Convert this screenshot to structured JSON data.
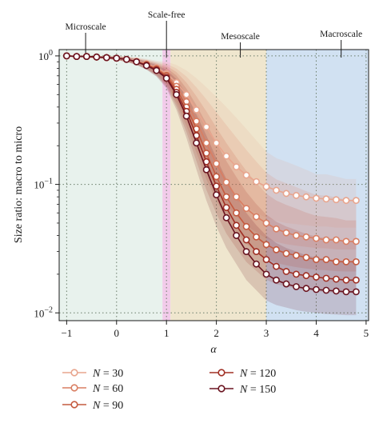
{
  "chart_data": {
    "type": "line",
    "ylabel": "Size ratio: macro to micro",
    "xlabel": "α",
    "yscale": "log",
    "xlim": [
      -1.15,
      5.05
    ],
    "ylim": [
      0.0087,
      1.12
    ],
    "grid": true,
    "legend_placement": "bottom",
    "x_ticks": [
      -1,
      0,
      1,
      2,
      3,
      4,
      5
    ],
    "x_tick_labels": [
      "−1",
      "0",
      "1",
      "2",
      "3",
      "4",
      "5"
    ],
    "y_ticks": [
      {
        "value": 1,
        "base": "10",
        "exp": "0"
      },
      {
        "value": 0.1,
        "base": "10",
        "exp": "−1"
      },
      {
        "value": 0.01,
        "base": "10",
        "exp": "−2"
      }
    ],
    "regions": [
      {
        "name": "Microscale",
        "x_from": -1.15,
        "x_to": 0.92,
        "color": "#e4f0ea",
        "label_x": -0.62
      },
      {
        "name": "Scale-free",
        "x_from": 0.92,
        "x_to": 1.08,
        "color": "#f0c2e6",
        "label_x": 1.0
      },
      {
        "name": "Mesoscale",
        "x_from": 1.08,
        "x_to": 3.0,
        "color": "#ece2c6",
        "label_x": 2.48
      },
      {
        "name": "Macroscale",
        "x_from": 3.0,
        "x_to": 5.05,
        "color": "#c9dcf0",
        "label_x": 4.5
      }
    ],
    "x": [
      -1.0,
      -0.8,
      -0.6,
      -0.4,
      -0.2,
      0.0,
      0.2,
      0.4,
      0.6,
      0.8,
      1.0,
      1.2,
      1.4,
      1.6,
      1.8,
      2.0,
      2.2,
      2.4,
      2.6,
      2.8,
      3.0,
      3.2,
      3.4,
      3.6,
      3.8,
      4.0,
      4.2,
      4.4,
      4.6,
      4.8
    ],
    "series": [
      {
        "name": "N = 30",
        "color": "#e8a58e",
        "values": [
          1.0,
          0.99,
          0.99,
          0.98,
          0.97,
          0.96,
          0.94,
          0.91,
          0.87,
          0.81,
          0.73,
          0.62,
          0.5,
          0.38,
          0.28,
          0.21,
          0.166,
          0.137,
          0.118,
          0.105,
          0.096,
          0.09,
          0.085,
          0.082,
          0.08,
          0.078,
          0.077,
          0.076,
          0.075,
          0.075
        ],
        "band_high": [
          1.0,
          1.0,
          1.0,
          1.0,
          1.0,
          1.0,
          0.99,
          0.97,
          0.95,
          0.92,
          0.9,
          0.85,
          0.77,
          0.67,
          0.57,
          0.48,
          0.4,
          0.33,
          0.27,
          0.22,
          0.18,
          0.16,
          0.15,
          0.14,
          0.13,
          0.12,
          0.12,
          0.115,
          0.11,
          0.11
        ],
        "band_low": [
          1.0,
          0.98,
          0.97,
          0.96,
          0.95,
          0.93,
          0.9,
          0.86,
          0.8,
          0.72,
          0.62,
          0.48,
          0.35,
          0.24,
          0.16,
          0.12,
          0.09,
          0.075,
          0.066,
          0.06,
          0.055,
          0.052,
          0.05,
          0.049,
          0.048,
          0.047,
          0.047,
          0.046,
          0.046,
          0.046
        ]
      },
      {
        "name": "N = 60",
        "color": "#d97e62",
        "values": [
          1.0,
          0.99,
          0.99,
          0.98,
          0.97,
          0.96,
          0.94,
          0.9,
          0.86,
          0.8,
          0.71,
          0.58,
          0.44,
          0.31,
          0.21,
          0.145,
          0.104,
          0.08,
          0.065,
          0.056,
          0.05,
          0.045,
          0.042,
          0.04,
          0.039,
          0.038,
          0.037,
          0.037,
          0.036,
          0.036
        ]
      },
      {
        "name": "N = 90",
        "color": "#c45a3f",
        "values": [
          1.0,
          0.99,
          0.99,
          0.98,
          0.97,
          0.96,
          0.94,
          0.9,
          0.85,
          0.79,
          0.7,
          0.55,
          0.4,
          0.27,
          0.175,
          0.115,
          0.08,
          0.06,
          0.047,
          0.039,
          0.034,
          0.031,
          0.029,
          0.028,
          0.027,
          0.026,
          0.026,
          0.025,
          0.025,
          0.025
        ]
      },
      {
        "name": "N = 120",
        "color": "#a03025",
        "values": [
          1.0,
          0.99,
          0.99,
          0.98,
          0.97,
          0.96,
          0.94,
          0.9,
          0.85,
          0.78,
          0.68,
          0.52,
          0.37,
          0.24,
          0.15,
          0.097,
          0.066,
          0.048,
          0.037,
          0.03,
          0.026,
          0.023,
          0.021,
          0.02,
          0.0195,
          0.019,
          0.0186,
          0.0183,
          0.018,
          0.018
        ]
      },
      {
        "name": "N = 150",
        "color": "#6a1420",
        "values": [
          1.0,
          0.99,
          0.99,
          0.98,
          0.97,
          0.96,
          0.94,
          0.9,
          0.84,
          0.77,
          0.67,
          0.5,
          0.34,
          0.21,
          0.13,
          0.083,
          0.055,
          0.04,
          0.03,
          0.024,
          0.02,
          0.018,
          0.0168,
          0.016,
          0.0155,
          0.0152,
          0.015,
          0.0148,
          0.0146,
          0.0146
        ],
        "band_high": [
          1.0,
          1.0,
          1.0,
          0.99,
          0.99,
          0.98,
          0.97,
          0.94,
          0.9,
          0.85,
          0.78,
          0.66,
          0.5,
          0.35,
          0.24,
          0.16,
          0.11,
          0.08,
          0.06,
          0.048,
          0.04,
          0.035,
          0.032,
          0.03,
          0.028,
          0.027,
          0.026,
          0.026,
          0.025,
          0.025
        ],
        "band_low": [
          0.99,
          0.98,
          0.97,
          0.96,
          0.95,
          0.93,
          0.9,
          0.85,
          0.78,
          0.69,
          0.56,
          0.38,
          0.23,
          0.13,
          0.075,
          0.047,
          0.032,
          0.024,
          0.018,
          0.015,
          0.0125,
          0.0115,
          0.011,
          0.0105,
          0.0102,
          0.01,
          0.0098,
          0.0097,
          0.0096,
          0.0096
        ]
      }
    ]
  }
}
